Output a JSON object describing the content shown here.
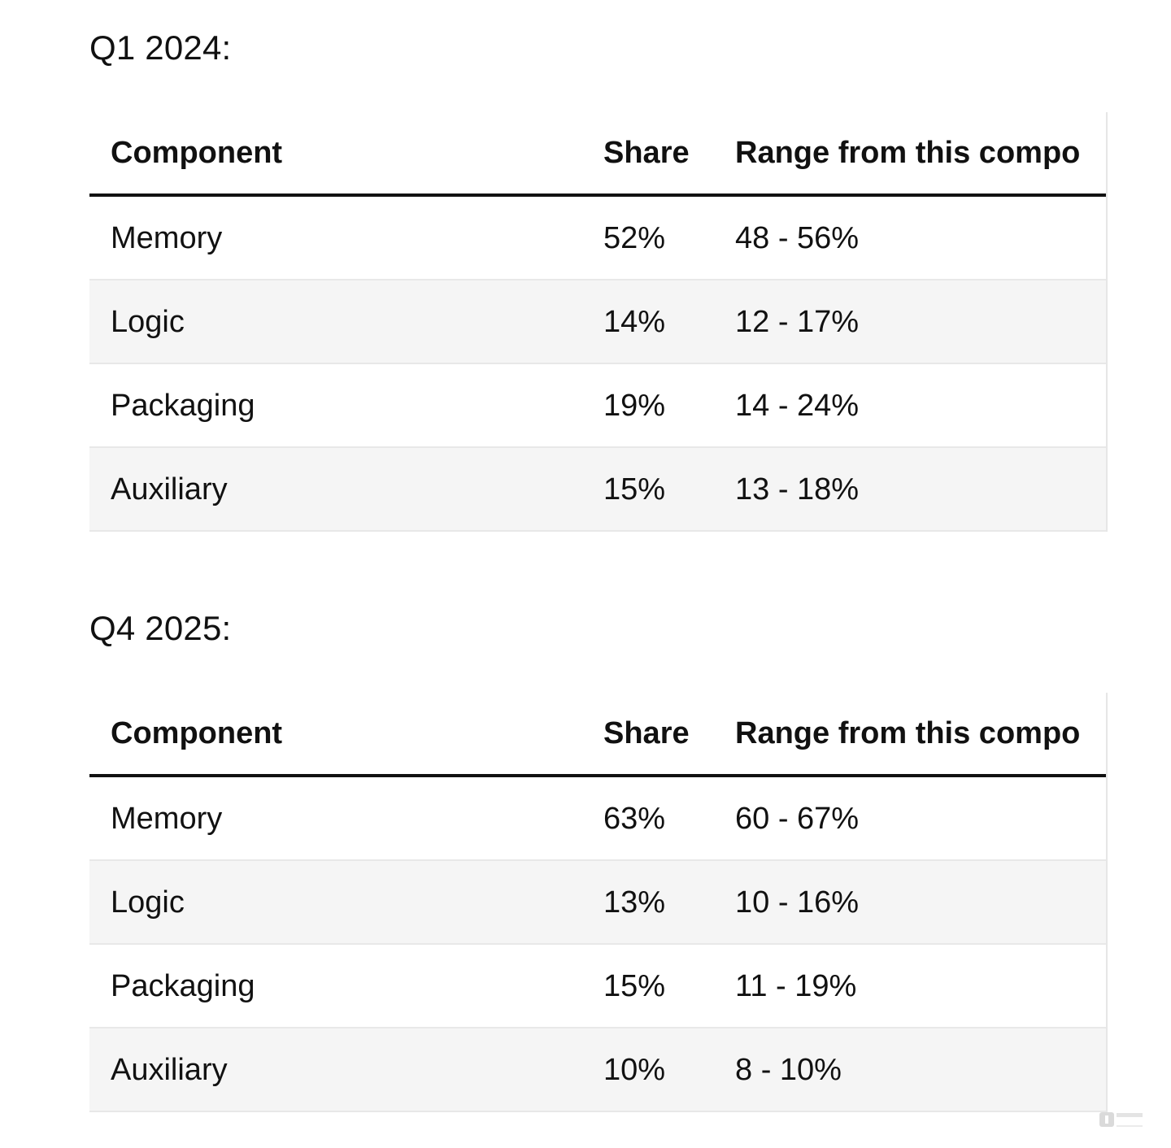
{
  "tables": [
    {
      "title": "Q1 2024:",
      "headers": [
        "Component",
        "Share",
        "Range from this compo"
      ],
      "rows": [
        [
          "Memory",
          "52%",
          "48 - 56%"
        ],
        [
          "Logic",
          "14%",
          "12 - 17%"
        ],
        [
          "Packaging",
          "19%",
          "14 - 24%"
        ],
        [
          "Auxiliary",
          "15%",
          "13 - 18%"
        ]
      ]
    },
    {
      "title": "Q4 2025:",
      "headers": [
        "Component",
        "Share",
        "Range from this compo"
      ],
      "rows": [
        [
          "Memory",
          "63%",
          "60 - 67%"
        ],
        [
          "Logic",
          "13%",
          "10 - 16%"
        ],
        [
          "Packaging",
          "15%",
          "11 - 19%"
        ],
        [
          "Auxiliary",
          "10%",
          "8 - 10%"
        ]
      ]
    }
  ],
  "watermark": {
    "icon": "brand-logo-icon"
  }
}
